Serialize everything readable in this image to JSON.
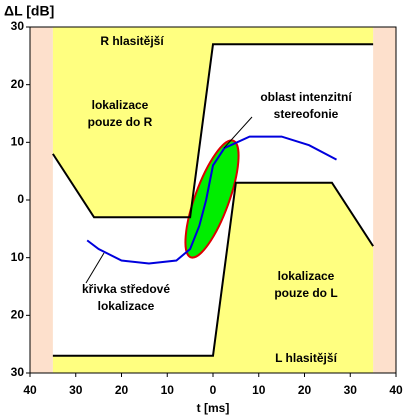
{
  "chart_data": {
    "type": "line",
    "xlabel": "t [ms]",
    "ylabel": "ΔL [dB]",
    "xlim": [
      -40,
      40
    ],
    "ylim": [
      -30,
      30
    ],
    "xticks": [
      {
        "value": -40,
        "label": "40"
      },
      {
        "value": -30,
        "label": "30"
      },
      {
        "value": -20,
        "label": "20"
      },
      {
        "value": -10,
        "label": "10"
      },
      0,
      10,
      20,
      30,
      40
    ],
    "yticks": [
      {
        "value": -30,
        "label": "30"
      },
      {
        "value": -20,
        "label": "20"
      },
      {
        "value": -10,
        "label": "10"
      },
      0,
      10,
      20,
      30
    ],
    "grid": false,
    "side_color": "#fde0cc",
    "region_color": "#ffff80",
    "series": [
      {
        "color": "#000000",
        "fill": "above",
        "x": [
          -35,
          -26,
          -5,
          0,
          35
        ],
        "values": [
          8,
          -3,
          -3,
          27,
          27
        ]
      },
      {
        "color": "#000000",
        "fill": "below",
        "x": [
          -35,
          0,
          5,
          26,
          35
        ],
        "values": [
          -27,
          -27,
          3,
          3,
          -8
        ]
      },
      {
        "color": "#0000dd",
        "x": [
          -27.5,
          -25,
          -20,
          -14,
          -8,
          -5,
          -3,
          -1.5,
          0,
          2.5,
          8,
          15,
          21,
          27
        ],
        "values": [
          -7,
          -8.5,
          -10.5,
          -11,
          -10.5,
          -8.5,
          -4.5,
          0,
          6,
          9,
          11,
          11,
          9.5,
          7
        ]
      }
    ],
    "annotations": {
      "top": "R hlasitější",
      "left": [
        "lokalizace",
        "pouze do R"
      ],
      "stereo": [
        "oblast intenzitní",
        "stereofonie"
      ],
      "curve": [
        "křivka středové",
        "lokalizace"
      ],
      "right": [
        "lokalizace",
        "pouze do L"
      ],
      "bottom": "L hlasitější"
    }
  }
}
